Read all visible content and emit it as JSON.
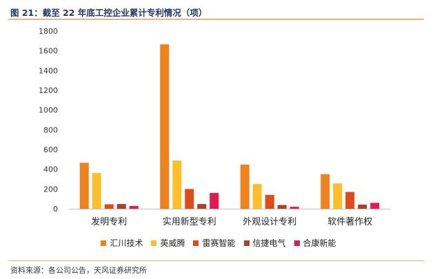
{
  "header": {
    "title": "图 21：截至 22 年底工控企业累计专利情况（项）"
  },
  "footer": {
    "source": "资料来源：各公司公告，天风证券研究所"
  },
  "chart_data": {
    "type": "bar",
    "categories": [
      "发明专利",
      "实用新型专利",
      "外观设计专利",
      "软件著作权"
    ],
    "series": [
      {
        "name": "汇川技术",
        "color": "#f0821e",
        "values": [
          465,
          1665,
          447,
          350
        ]
      },
      {
        "name": "英威腾",
        "color": "#fdbf2d",
        "values": [
          362,
          488,
          250,
          257
        ]
      },
      {
        "name": "雷赛智能",
        "color": "#e04b1c",
        "values": [
          45,
          200,
          140,
          170
        ]
      },
      {
        "name": "信捷电气",
        "color": "#a8422d",
        "values": [
          48,
          48,
          38,
          42
        ]
      },
      {
        "name": "合康新能",
        "color": "#e5194f",
        "values": [
          28,
          160,
          20,
          60
        ]
      }
    ],
    "ylim": [
      0,
      1800
    ],
    "yticks": [
      0,
      200,
      400,
      600,
      800,
      1000,
      1200,
      1400,
      1600,
      1800
    ],
    "grid": false,
    "legend_position": "bottom"
  }
}
